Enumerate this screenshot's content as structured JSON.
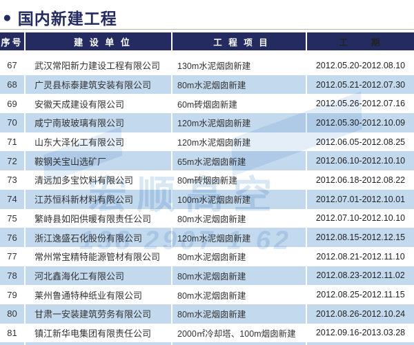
{
  "page_title": "国内新建工程",
  "colors": {
    "navy": "#242b61",
    "row_highlight": "#c3d9ee"
  },
  "table": {
    "headers": {
      "no": "序号",
      "company": "建 设 单 位",
      "project": "工 程 项 目",
      "period": "工　　期"
    },
    "rows": [
      {
        "no": "67",
        "company": "武汉常阳新力建设工程有限公司",
        "project": "130m水泥烟囱新建",
        "period": "2012.05.20-2012.08.10"
      },
      {
        "no": "68",
        "company": "广灵县标泰建筑安装有限公司",
        "project": "80m水泥烟囱新建",
        "period": "2012.05.21-2012.07.30"
      },
      {
        "no": "69",
        "company": "安徽天成建设有限公司",
        "project": "60m砖烟囱新建",
        "period": "2012.05.26-2012.07.16"
      },
      {
        "no": "70",
        "company": "咸宁南玻玻璃有限公司",
        "project": "120m水泥烟囱新建",
        "period": "2012.05.30-2012.10.09"
      },
      {
        "no": "71",
        "company": "山东大泽化工有限公司",
        "project": "120m水泥烟囱新建",
        "period": "2012.06.05-2012.08.25"
      },
      {
        "no": "72",
        "company": "鞍钢关宝山选矿厂",
        "project": "65m水泥烟囱新建",
        "period": "2012.06.10-2012.10.10"
      },
      {
        "no": "73",
        "company": "清远加多宝饮料有限公司",
        "project": "80m砖烟囱新建",
        "period": "2012.06.18-2012.08.22"
      },
      {
        "no": "74",
        "company": "江苏恒科新材料有限公司",
        "project": "100m水泥烟囱新建",
        "period": "2012.07.01-2012.10.01"
      },
      {
        "no": "75",
        "company": "繁峙县如阳供暖有限责任公司",
        "project": "80m水泥烟囱新建",
        "period": "2012.07.10-2012.10.10"
      },
      {
        "no": "76",
        "company": "浙江逸盛石化股份有限公司",
        "project": "120m水泥烟囱新建",
        "period": "2012.08.15-2012.12.15"
      },
      {
        "no": "77",
        "company": "常州常宝精特能源管材有限公司",
        "project": "80m水泥烟囱新建",
        "period": "2012.08.21-2012.11.10"
      },
      {
        "no": "78",
        "company": "河北鑫海化工有限公司",
        "project": "80m水泥烟囱新建",
        "period": "2012.08.23-2012.11.02"
      },
      {
        "no": "79",
        "company": "莱州鲁通特种纸业有限公司",
        "project": "80m水泥烟囱新建",
        "period": "2012.08.25-2012.11.15"
      },
      {
        "no": "80",
        "company": "甘肃一安装建筑劳务有限公司",
        "project": "80m水泥烟囱新建",
        "period": "2012.08.26-2012.10.24"
      },
      {
        "no": "81",
        "company": "镇江新华电集团有限责任公司",
        "project": "2000㎡冷却塔、100m烟囱新建",
        "period": "2012.09.16-2013.03.28"
      }
    ]
  },
  "watermark": {
    "logo_text": "宏顺高空",
    "digits_text": "138 2907 1 62"
  }
}
